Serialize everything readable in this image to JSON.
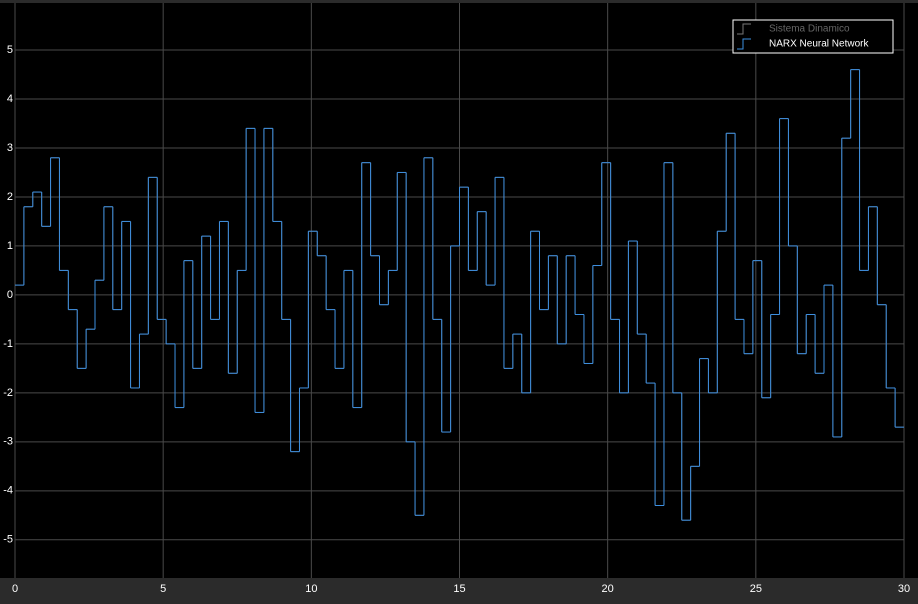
{
  "chart_data": {
    "type": "line",
    "step": true,
    "x": [
      0,
      0.3,
      0.6,
      0.9,
      1.2,
      1.5,
      1.8,
      2.1,
      2.4,
      2.7,
      3.0,
      3.3,
      3.6,
      3.9,
      4.2,
      4.5,
      4.8,
      5.1,
      5.4,
      5.7,
      6.0,
      6.3,
      6.6,
      6.9,
      7.2,
      7.5,
      7.8,
      8.1,
      8.4,
      8.7,
      9.0,
      9.3,
      9.6,
      9.9,
      10.2,
      10.5,
      10.8,
      11.1,
      11.4,
      11.7,
      12.0,
      12.3,
      12.6,
      12.9,
      13.2,
      13.5,
      13.8,
      14.1,
      14.4,
      14.7,
      15.0,
      15.3,
      15.6,
      15.9,
      16.2,
      16.5,
      16.8,
      17.1,
      17.4,
      17.7,
      18.0,
      18.3,
      18.6,
      18.9,
      19.2,
      19.5,
      19.8,
      20.1,
      20.4,
      20.7,
      21.0,
      21.3,
      21.6,
      21.9,
      22.2,
      22.5,
      22.8,
      23.1,
      23.4,
      23.7,
      24.0,
      24.3,
      24.6,
      24.9,
      25.2,
      25.5,
      25.8,
      26.1,
      26.4,
      26.7,
      27.0,
      27.3,
      27.6,
      27.9,
      28.2,
      28.5,
      28.8,
      29.1,
      29.4,
      29.7
    ],
    "series": [
      {
        "name": "Sistema Dinamico",
        "color": "#555555",
        "values": [
          0.2,
          1.8,
          2.1,
          1.4,
          2.8,
          0.5,
          -0.3,
          -1.5,
          -0.7,
          0.3,
          1.8,
          -0.3,
          1.5,
          -1.9,
          -0.8,
          2.4,
          -0.5,
          -1.0,
          -2.3,
          0.7,
          -1.5,
          1.2,
          -0.5,
          1.5,
          -1.6,
          0.5,
          3.4,
          -2.4,
          3.4,
          1.5,
          -0.5,
          -3.2,
          -1.9,
          1.3,
          0.8,
          -0.3,
          -1.5,
          0.5,
          -2.3,
          2.7,
          0.8,
          -0.2,
          0.5,
          2.5,
          -3.0,
          -4.5,
          2.8,
          -0.5,
          -2.8,
          1.0,
          2.2,
          0.5,
          1.7,
          0.2,
          2.4,
          -1.5,
          -0.8,
          -2.0,
          1.3,
          -0.3,
          0.8,
          -1.0,
          0.8,
          -0.4,
          -1.4,
          0.6,
          2.7,
          -0.5,
          -2.0,
          1.1,
          -0.8,
          -1.8,
          -4.3,
          2.7,
          -2.0,
          -4.6,
          -3.5,
          -1.3,
          -2.0,
          1.3,
          3.3,
          -0.5,
          -1.2,
          0.7,
          -2.1,
          -0.4,
          3.6,
          1.0,
          -1.2,
          -0.4,
          -1.6,
          0.2,
          -2.9,
          3.2,
          4.6,
          0.5,
          1.8,
          -0.2,
          -1.9,
          -2.7
        ]
      },
      {
        "name": "NARX Neural Network",
        "color": "#3d8fe0",
        "values": [
          0.2,
          1.8,
          2.1,
          1.4,
          2.8,
          0.5,
          -0.3,
          -1.5,
          -0.7,
          0.3,
          1.8,
          -0.3,
          1.5,
          -1.9,
          -0.8,
          2.4,
          -0.5,
          -1.0,
          -2.3,
          0.7,
          -1.5,
          1.2,
          -0.5,
          1.5,
          -1.6,
          0.5,
          3.4,
          -2.4,
          3.4,
          1.5,
          -0.5,
          -3.2,
          -1.9,
          1.3,
          0.8,
          -0.3,
          -1.5,
          0.5,
          -2.3,
          2.7,
          0.8,
          -0.2,
          0.5,
          2.5,
          -3.0,
          -4.5,
          2.8,
          -0.5,
          -2.8,
          1.0,
          2.2,
          0.5,
          1.7,
          0.2,
          2.4,
          -1.5,
          -0.8,
          -2.0,
          1.3,
          -0.3,
          0.8,
          -1.0,
          0.8,
          -0.4,
          -1.4,
          0.6,
          2.7,
          -0.5,
          -2.0,
          1.1,
          -0.8,
          -1.8,
          -4.3,
          2.7,
          -2.0,
          -4.6,
          -3.5,
          -1.3,
          -2.0,
          1.3,
          3.3,
          -0.5,
          -1.2,
          0.7,
          -2.1,
          -0.4,
          3.6,
          1.0,
          -1.2,
          -0.4,
          -1.6,
          0.2,
          -2.9,
          3.2,
          4.6,
          0.5,
          1.8,
          -0.2,
          -1.9,
          -2.7
        ]
      }
    ],
    "xlim": [
      0,
      30
    ],
    "xticks": [
      0,
      5,
      10,
      15,
      20,
      25,
      30
    ],
    "ylim": [
      -5.78,
      5.96
    ],
    "yticks": [
      -5,
      -4,
      -3,
      -2,
      -1,
      0,
      1,
      2,
      3,
      4,
      5
    ],
    "grid": true,
    "legend": "top-right"
  }
}
